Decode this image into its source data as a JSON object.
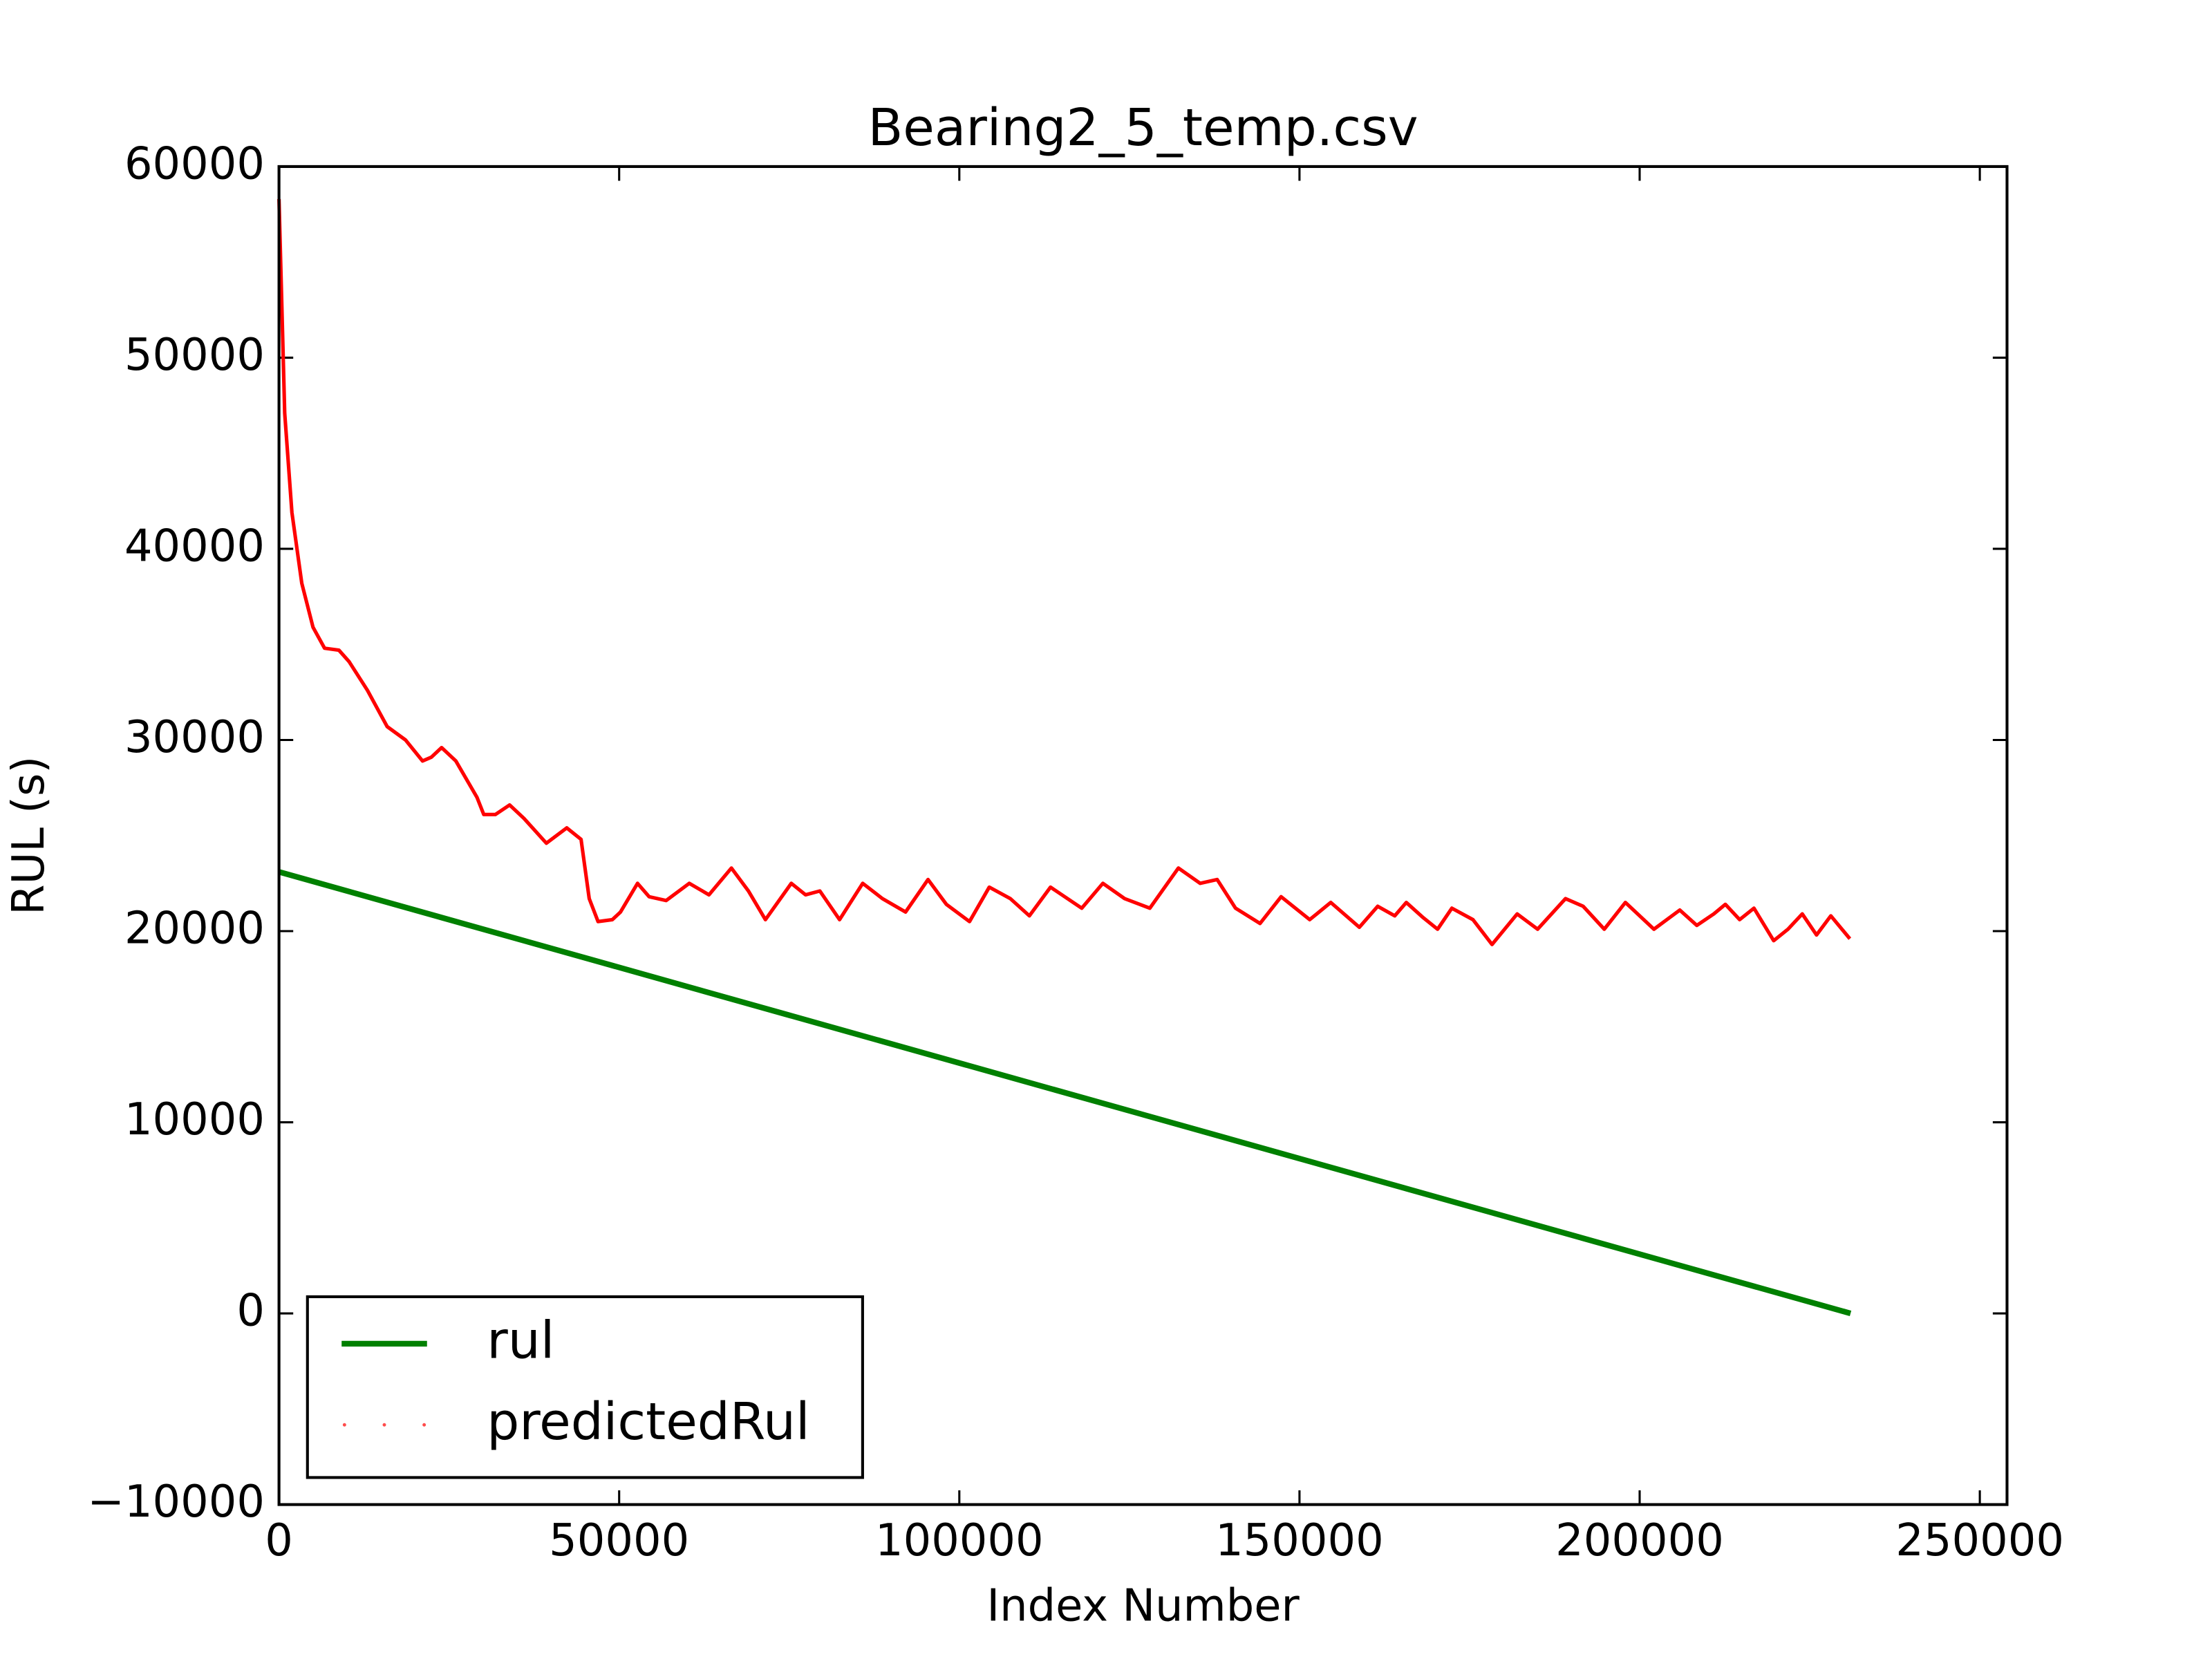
{
  "chart_data": {
    "type": "line",
    "title": "Bearing2_5_temp.csv",
    "x_label": "Index Number",
    "y_label": "RUL (s)",
    "xlim": [
      0,
      254000
    ],
    "ylim": [
      -10000,
      60000
    ],
    "xticks": [
      0,
      50000,
      100000,
      150000,
      200000,
      250000
    ],
    "yticks": [
      {
        "value": -10000,
        "label": "−10000"
      },
      0,
      10000,
      20000,
      30000,
      40000,
      50000,
      60000
    ],
    "legend": "lower left",
    "series": [
      {
        "name": "rul",
        "color": "#008000",
        "x": [
          0,
          231000
        ],
        "values": [
          23100,
          0
        ]
      },
      {
        "name": "predictedRul",
        "color": "#ff0000",
        "x": [
          0,
          840,
          1900,
          3350,
          5000,
          6700,
          8800,
          10300,
          13000,
          15900,
          18600,
          21100,
          22400,
          23900,
          26000,
          29100,
          30100,
          31800,
          33900,
          36000,
          39300,
          42300,
          44400,
          45600,
          46900,
          49000,
          50200,
          52700,
          54400,
          56900,
          60300,
          63200,
          66500,
          69000,
          71500,
          75300,
          77400,
          79500,
          82400,
          85800,
          88700,
          92100,
          95400,
          98100,
          101500,
          104400,
          107500,
          110300,
          113400,
          118000,
          121100,
          124300,
          128000,
          132200,
          135400,
          137900,
          140600,
          144200,
          147300,
          151500,
          154600,
          158800,
          161500,
          164000,
          165700,
          168200,
          170300,
          172400,
          175500,
          178300,
          182000,
          185000,
          189100,
          191700,
          194800,
          197900,
          202100,
          205900,
          208400,
          210900,
          212600,
          214700,
          216800,
          219700,
          221800,
          223900,
          226000,
          228100,
          230900
        ],
        "values": [
          58300,
          47100,
          41900,
          38200,
          35900,
          34800,
          34700,
          34100,
          32600,
          30700,
          30000,
          28900,
          29100,
          29600,
          28900,
          27000,
          26100,
          26100,
          26600,
          25900,
          24600,
          25400,
          24800,
          21700,
          20500,
          20600,
          21000,
          22500,
          21800,
          21600,
          22500,
          21900,
          23300,
          22100,
          20600,
          22500,
          21900,
          22100,
          20600,
          22500,
          21700,
          21000,
          22700,
          21400,
          20500,
          22300,
          21700,
          20800,
          22300,
          21200,
          22500,
          21700,
          21200,
          23300,
          22500,
          22700,
          21200,
          20400,
          21800,
          20600,
          21500,
          20200,
          21300,
          20800,
          21500,
          20700,
          20100,
          21200,
          20600,
          19300,
          20900,
          20100,
          21700,
          21300,
          20100,
          21500,
          20100,
          21100,
          20300,
          20900,
          21400,
          20600,
          21200,
          19500,
          20100,
          20900,
          19800,
          20800,
          19600
        ]
      }
    ]
  }
}
